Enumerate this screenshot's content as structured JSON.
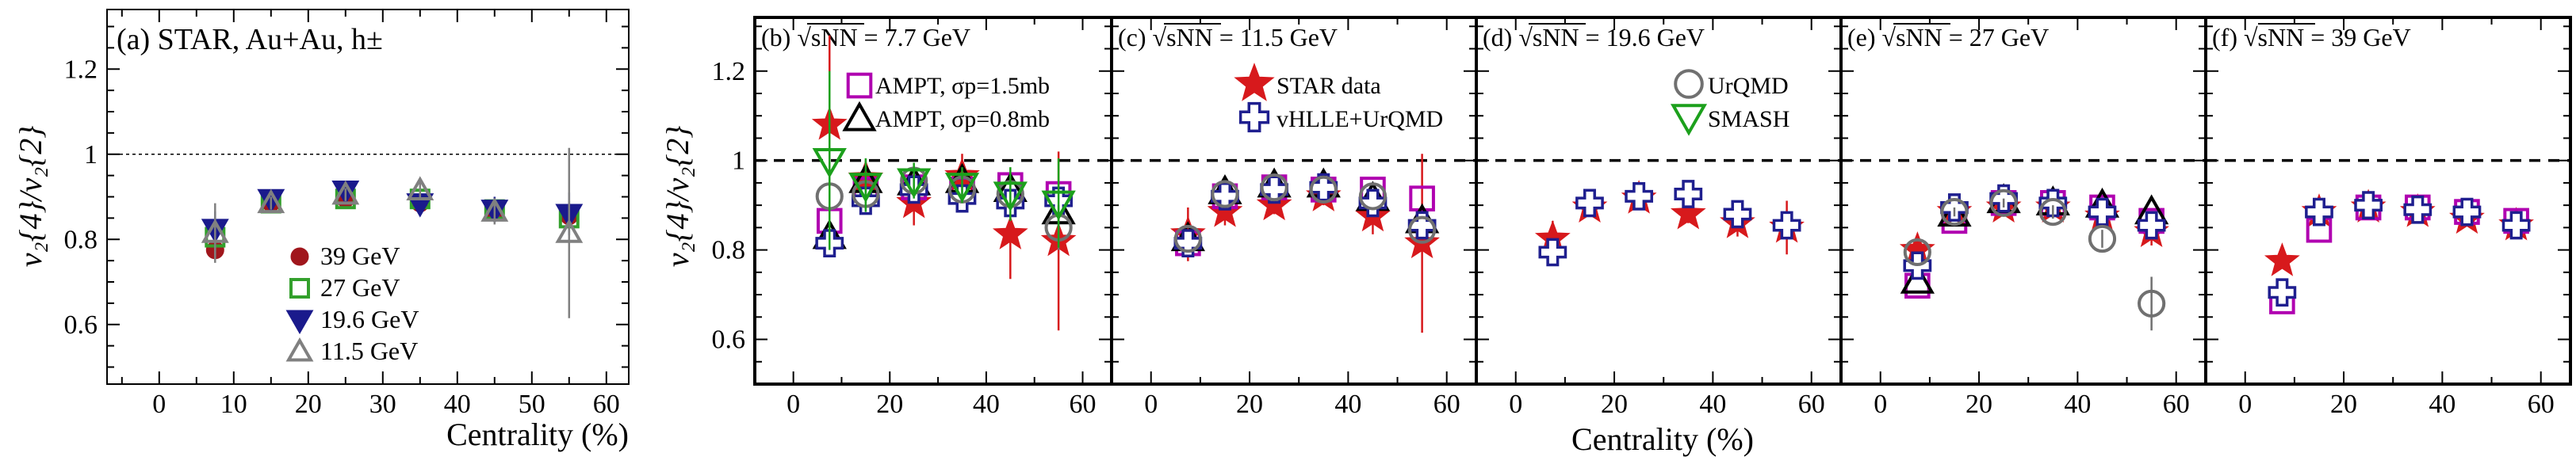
{
  "figure": {
    "shared_xlabel": "Centrality (%)",
    "shared_ylabel": "v₂{4}/v₂{2}"
  },
  "colors": {
    "star": "#d7191c",
    "ampt15": "#b000b0",
    "ampt08": "#000000",
    "vhlle": "#1f1f8f",
    "urqmd": "#707070",
    "smash": "#1ca01c",
    "e39": "#a0161c",
    "e27": "#33a02c",
    "e196": "#1a1a8c",
    "e115": "#808080"
  },
  "legend_labels": {
    "star": "STAR data",
    "ampt15": "AMPT, σp=1.5mb",
    "ampt08": "AMPT, σp=0.8mb",
    "vhlle": "vHLLE+UrQMD",
    "urqmd": "UrQMD",
    "smash": "SMASH",
    "e39": "39 GeV",
    "e27": "27 GeV",
    "e196": "19.6 GeV",
    "e115": "11.5 GeV"
  },
  "chart_data": [
    {
      "panel": "(a)",
      "title": "(a) STAR, Au+Au, h±",
      "type": "scatter",
      "xlabel": "Centrality (%)",
      "ylabel": "v₂{4}/v₂{2}",
      "xlim": [
        -7,
        63
      ],
      "ylim": [
        0.46,
        1.34
      ],
      "xticks": [
        0,
        10,
        20,
        30,
        40,
        50,
        60
      ],
      "yticks": [
        0.6,
        0.8,
        1.0,
        1.2
      ],
      "reference_line": 1.0,
      "series": [
        {
          "key": "e39",
          "marker": "circle",
          "x": [
            7.5,
            15,
            25,
            35,
            45,
            55
          ],
          "y": [
            0.775,
            0.885,
            0.895,
            0.885,
            0.865,
            0.855
          ],
          "err": [
            0,
            0.01,
            0.008,
            0.01,
            0.02,
            0.03
          ]
        },
        {
          "key": "e27",
          "marker": "square-open",
          "x": [
            7.5,
            15,
            25,
            35,
            45,
            55
          ],
          "y": [
            0.805,
            0.885,
            0.895,
            0.895,
            0.87,
            0.85
          ],
          "err": [
            0.03,
            0.015,
            0.01,
            0.015,
            0.02,
            0.04
          ]
        },
        {
          "key": "e196",
          "marker": "tri-down",
          "x": [
            7.5,
            15,
            25,
            35,
            45,
            55
          ],
          "y": [
            0.825,
            0.895,
            0.915,
            0.885,
            0.87,
            0.86
          ],
          "err": [
            0.04,
            0.015,
            0.01,
            0.02,
            0.03,
            0.05
          ]
        },
        {
          "key": "e115",
          "marker": "tri-open",
          "x": [
            7.5,
            15,
            25,
            35,
            45,
            55
          ],
          "y": [
            0.815,
            0.885,
            0.905,
            0.915,
            0.865,
            0.815
          ],
          "err": [
            0.07,
            0.015,
            0.015,
            0.02,
            0.03,
            0.2
          ]
        }
      ]
    },
    {
      "panel": "(b)",
      "title": "(b) √sNN = 7.7 GeV",
      "type": "scatter",
      "xlabel": "",
      "ylabel": "v₂{4}/v₂{2}",
      "xlim": [
        -8,
        66
      ],
      "ylim": [
        0.5,
        1.32
      ],
      "xticks": [
        0,
        20,
        40,
        60
      ],
      "yticks": [
        0.6,
        0.8,
        1.0,
        1.2
      ],
      "reference_line": 1.0,
      "series": [
        {
          "key": "star",
          "marker": "star",
          "x": [
            7.5,
            15,
            25,
            35,
            45,
            55
          ],
          "y": [
            1.08,
            0.96,
            0.905,
            0.965,
            0.835,
            0.82
          ],
          "err": [
            0.2,
            0.04,
            0.05,
            0.05,
            0.1,
            0.2
          ]
        },
        {
          "key": "ampt15",
          "marker": "square-open",
          "x": [
            7.5,
            15,
            25,
            35,
            45,
            55
          ],
          "y": [
            0.865,
            0.935,
            0.94,
            0.935,
            0.945,
            0.925
          ],
          "err": [
            0,
            0,
            0,
            0,
            0,
            0
          ]
        },
        {
          "key": "ampt08",
          "marker": "tri-open",
          "x": [
            7.5,
            15,
            25,
            35,
            45,
            55
          ],
          "y": [
            0.83,
            0.955,
            0.95,
            0.955,
            0.935,
            0.885
          ],
          "err": [
            0,
            0,
            0,
            0,
            0,
            0
          ]
        },
        {
          "key": "vhlle",
          "marker": "cross-open",
          "x": [
            7.5,
            15,
            25,
            35,
            45,
            55
          ],
          "y": [
            0.815,
            0.91,
            0.935,
            0.915,
            0.905,
            0.91
          ],
          "err": [
            0,
            0,
            0,
            0,
            0,
            0
          ]
        },
        {
          "key": "urqmd",
          "marker": "circle-open",
          "x": [
            7.5,
            15,
            25,
            35,
            45,
            55
          ],
          "y": [
            0.92,
            0.925,
            0.955,
            0.935,
            0.925,
            0.85
          ],
          "err": [
            0.07,
            0.02,
            0.02,
            0.02,
            0.02,
            0.05
          ]
        },
        {
          "key": "smash",
          "marker": "tri-down-open",
          "x": [
            7.5,
            15,
            25,
            35,
            45,
            55
          ],
          "y": [
            1.0,
            0.945,
            0.955,
            0.945,
            0.925,
            0.905
          ],
          "err": [
            0.2,
            0.06,
            0.04,
            0.04,
            0.06,
            0.1
          ]
        }
      ]
    },
    {
      "panel": "(c)",
      "title": "(c) √sNN = 11.5 GeV",
      "type": "scatter",
      "xlabel": "",
      "ylabel": "",
      "xlim": [
        -8,
        66
      ],
      "ylim": [
        0.5,
        1.32
      ],
      "xticks": [
        0,
        20,
        40,
        60
      ],
      "yticks": [
        0.6,
        0.8,
        1.0,
        1.2
      ],
      "reference_line": 1.0,
      "series": [
        {
          "key": "star",
          "marker": "star",
          "x": [
            7.5,
            15,
            25,
            35,
            45,
            55
          ],
          "y": [
            0.835,
            0.885,
            0.9,
            0.92,
            0.875,
            0.815
          ],
          "err": [
            0.06,
            0.03,
            0.02,
            0.02,
            0.04,
            0.2
          ]
        },
        {
          "key": "ampt15",
          "marker": "square-open",
          "x": [
            7.5,
            15,
            25,
            35,
            45,
            55
          ],
          "y": [
            0.815,
            0.92,
            0.94,
            0.935,
            0.935,
            0.915
          ],
          "err": [
            0,
            0,
            0,
            0,
            0,
            0
          ]
        },
        {
          "key": "ampt08",
          "marker": "tri-open",
          "x": [
            7.5,
            15,
            25,
            35,
            45,
            55
          ],
          "y": [
            0.825,
            0.93,
            0.945,
            0.945,
            0.915,
            0.865
          ],
          "err": [
            0,
            0,
            0,
            0,
            0,
            0
          ]
        },
        {
          "key": "vhlle",
          "marker": "cross-open",
          "x": [
            7.5,
            15,
            25,
            35,
            45,
            55
          ],
          "y": [
            0.815,
            0.92,
            0.935,
            0.94,
            0.905,
            0.855
          ],
          "err": [
            0,
            0,
            0,
            0,
            0,
            0
          ]
        },
        {
          "key": "urqmd",
          "marker": "circle-open",
          "x": [
            7.5,
            15,
            25,
            35,
            45,
            55
          ],
          "y": [
            0.825,
            0.925,
            0.94,
            0.935,
            0.92,
            0.845
          ],
          "err": [
            0,
            0,
            0,
            0,
            0,
            0
          ]
        }
      ]
    },
    {
      "panel": "(d)",
      "title": "(d) √sNN = 19.6 GeV",
      "type": "scatter",
      "xlabel": "Centrality (%)",
      "ylabel": "",
      "xlim": [
        -8,
        66
      ],
      "ylim": [
        0.5,
        1.32
      ],
      "xticks": [
        0,
        20,
        40,
        60
      ],
      "yticks": [
        0.6,
        0.8,
        1.0,
        1.2
      ],
      "reference_line": 1.0,
      "series": [
        {
          "key": "star",
          "marker": "star",
          "x": [
            7.5,
            15,
            25,
            35,
            45,
            55
          ],
          "y": [
            0.825,
            0.895,
            0.915,
            0.88,
            0.86,
            0.85
          ],
          "err": [
            0.04,
            0.02,
            0.015,
            0.02,
            0.03,
            0.06
          ]
        },
        {
          "key": "vhlle",
          "marker": "cross-open",
          "x": [
            7.5,
            15,
            25,
            35,
            45,
            55
          ],
          "y": [
            0.795,
            0.905,
            0.92,
            0.925,
            0.88,
            0.855
          ],
          "err": [
            0,
            0,
            0,
            0,
            0,
            0
          ]
        }
      ]
    },
    {
      "panel": "(e)",
      "title": "(e) √sNN = 27 GeV",
      "type": "scatter",
      "xlabel": "",
      "ylabel": "",
      "xlim": [
        -8,
        66
      ],
      "ylim": [
        0.5,
        1.32
      ],
      "xticks": [
        0,
        20,
        40,
        60
      ],
      "yticks": [
        0.6,
        0.8,
        1.0,
        1.2
      ],
      "reference_line": 1.0,
      "series": [
        {
          "key": "star",
          "marker": "star",
          "x": [
            7.5,
            15,
            25,
            35,
            45,
            55
          ],
          "y": [
            0.8,
            0.885,
            0.895,
            0.895,
            0.875,
            0.84
          ],
          "err": [
            0.02,
            0.015,
            0.01,
            0.01,
            0.02,
            0.03
          ]
        },
        {
          "key": "ampt15",
          "marker": "square-open",
          "x": [
            7.5,
            15,
            25,
            35,
            45,
            55
          ],
          "y": [
            0.72,
            0.865,
            0.905,
            0.905,
            0.895,
            0.865
          ],
          "err": [
            0,
            0,
            0,
            0,
            0,
            0
          ]
        },
        {
          "key": "ampt08",
          "marker": "tri-open",
          "x": [
            7.5,
            15,
            25,
            35,
            45,
            55
          ],
          "y": [
            0.73,
            0.88,
            0.91,
            0.905,
            0.9,
            0.885
          ],
          "err": [
            0,
            0,
            0,
            0,
            0,
            0
          ]
        },
        {
          "key": "vhlle",
          "marker": "cross-open",
          "x": [
            7.5,
            15,
            25,
            35,
            45,
            55
          ],
          "y": [
            0.765,
            0.895,
            0.915,
            0.905,
            0.885,
            0.855
          ],
          "err": [
            0,
            0,
            0,
            0,
            0,
            0
          ]
        },
        {
          "key": "urqmd",
          "marker": "circle-open",
          "x": [
            7.5,
            15,
            25,
            35,
            45,
            55
          ],
          "y": [
            0.795,
            0.885,
            0.905,
            0.885,
            0.825,
            0.68
          ],
          "err": [
            0,
            0.01,
            0.01,
            0.015,
            0.02,
            0.06
          ]
        }
      ]
    },
    {
      "panel": "(f)",
      "title": "(f) √sNN = 39 GeV",
      "type": "scatter",
      "xlabel": "",
      "ylabel": "",
      "xlim": [
        -8,
        66
      ],
      "ylim": [
        0.5,
        1.32
      ],
      "xticks": [
        0,
        20,
        40,
        60
      ],
      "yticks": [
        0.6,
        0.8,
        1.0,
        1.2
      ],
      "reference_line": 1.0,
      "series": [
        {
          "key": "star",
          "marker": "star",
          "x": [
            7.5,
            15,
            25,
            35,
            45,
            55
          ],
          "y": [
            0.775,
            0.885,
            0.895,
            0.885,
            0.87,
            0.855
          ],
          "err": [
            0,
            0.01,
            0.008,
            0.01,
            0.015,
            0.02
          ]
        },
        {
          "key": "ampt15",
          "marker": "square-open",
          "x": [
            7.5,
            15,
            25,
            35,
            45,
            55
          ],
          "y": [
            0.685,
            0.845,
            0.895,
            0.895,
            0.885,
            0.865
          ],
          "err": [
            0,
            0,
            0,
            0,
            0,
            0
          ]
        },
        {
          "key": "vhlle",
          "marker": "cross-open",
          "x": [
            7.5,
            15,
            25,
            35,
            45,
            55
          ],
          "y": [
            0.705,
            0.885,
            0.9,
            0.89,
            0.885,
            0.855
          ],
          "err": [
            0,
            0,
            0,
            0,
            0,
            0
          ]
        }
      ]
    }
  ]
}
